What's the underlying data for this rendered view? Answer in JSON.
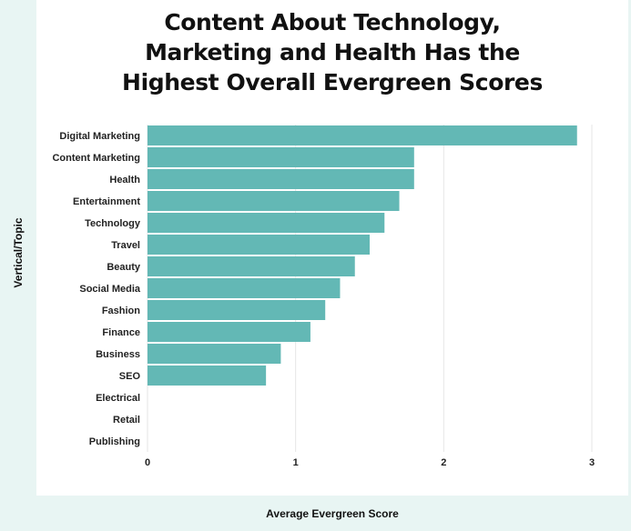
{
  "title_lines": [
    "Content About Technology,",
    "Marketing and Health Has the",
    "Highest Overall Evergreen Scores"
  ],
  "chart_data": {
    "type": "bar",
    "orientation": "horizontal",
    "title": "Content About Technology, Marketing and Health Has the Highest Overall Evergreen Scores",
    "xlabel": "Average Evergreen Score",
    "ylabel": "Vertical/Topic",
    "xlim": [
      0,
      3
    ],
    "xticks": [
      0,
      1,
      2,
      3
    ],
    "grid": "vertical",
    "bar_color": "#63b8b5",
    "categories": [
      "Digital Marketing",
      "Content Marketing",
      "Health",
      "Entertainment",
      "Technology",
      "Travel",
      "Beauty",
      "Social Media",
      "Fashion",
      "Finance",
      "Business",
      "SEO",
      "Electrical",
      "Retail",
      "Publishing"
    ],
    "values": [
      2.9,
      1.8,
      1.8,
      1.7,
      1.6,
      1.5,
      1.4,
      1.3,
      1.2,
      1.1,
      0.9,
      0.8,
      0,
      0,
      0
    ]
  }
}
